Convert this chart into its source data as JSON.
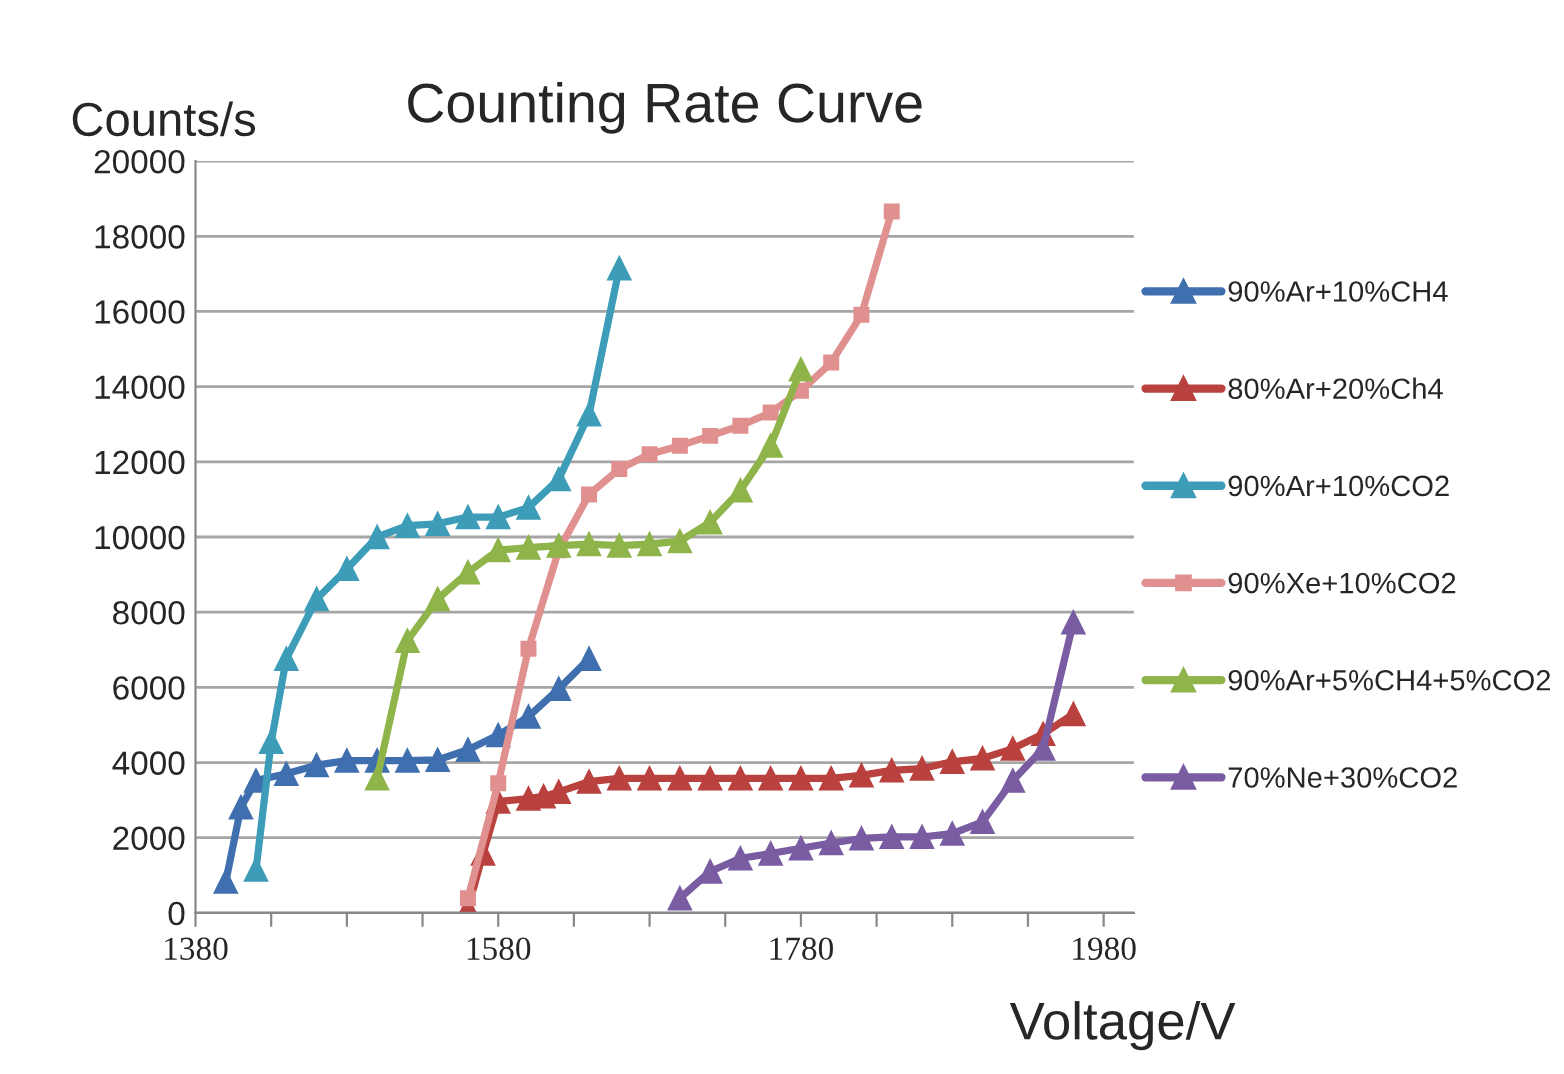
{
  "chart_data": {
    "type": "line",
    "title": "Counting Rate Curve",
    "xlabel": "Voltage/V",
    "ylabel": "Counts/s",
    "xlim": [
      1380,
      2000
    ],
    "ylim": [
      0,
      20000
    ],
    "xticks": [
      1380,
      {
        "value": 1430,
        "label": null
      },
      {
        "value": 1480,
        "label": null
      },
      {
        "value": 1530,
        "label": null
      },
      1580,
      {
        "value": 1630,
        "label": null
      },
      {
        "value": 1680,
        "label": null
      },
      {
        "value": 1730,
        "label": null
      },
      1780,
      {
        "value": 1830,
        "label": null
      },
      {
        "value": 1880,
        "label": null
      },
      {
        "value": 1930,
        "label": null
      },
      1980
    ],
    "yticks": [
      0,
      2000,
      4000,
      6000,
      8000,
      10000,
      12000,
      14000,
      16000,
      18000,
      20000
    ],
    "grid": "y",
    "legend": "right",
    "marker": "triangle",
    "series": [
      {
        "name": "90%Ar+10%CH4",
        "color": "#3f6fae",
        "x": [
          1400,
          1410,
          1420,
          1440,
          1460,
          1480,
          1500,
          1520,
          1540,
          1560,
          1580,
          1600,
          1620,
          1640
        ],
        "values": [
          830,
          2810,
          3520,
          3700,
          3930,
          4050,
          4050,
          4050,
          4070,
          4340,
          4730,
          5220,
          5960,
          6760
        ]
      },
      {
        "name": "80%Ar+20%Ch4",
        "color": "#b9413e",
        "x": [
          1560,
          1570,
          1580,
          1600,
          1610,
          1620,
          1640,
          1660,
          1680,
          1700,
          1720,
          1740,
          1760,
          1780,
          1800,
          1820,
          1840,
          1860,
          1880,
          1900,
          1920,
          1940,
          1960
        ],
        "values": [
          120,
          1580,
          2960,
          3040,
          3100,
          3220,
          3490,
          3580,
          3580,
          3580,
          3580,
          3580,
          3580,
          3580,
          3580,
          3660,
          3790,
          3840,
          4020,
          4110,
          4370,
          4760,
          5290
        ]
      },
      {
        "name": "90%Ar+10%CO2",
        "color": "#3d9db8",
        "x": [
          1420,
          1430,
          1440,
          1460,
          1480,
          1500,
          1520,
          1540,
          1560,
          1580,
          1600,
          1620,
          1640,
          1660
        ],
        "values": [
          1150,
          4550,
          6760,
          8350,
          9150,
          10000,
          10300,
          10350,
          10530,
          10530,
          10780,
          11540,
          13260,
          17150
        ]
      },
      {
        "name": "90%Xe+10%CO2",
        "color": "#e0908e",
        "marker": "square",
        "x": [
          1560,
          1580,
          1600,
          1620,
          1640,
          1660,
          1680,
          1700,
          1720,
          1740,
          1760,
          1780,
          1800,
          1820,
          1840
        ],
        "values": [
          390,
          3450,
          7030,
          9650,
          11130,
          11810,
          12200,
          12430,
          12690,
          12960,
          13310,
          13890,
          14640,
          15910,
          18660
        ]
      },
      {
        "name": "90%Ar+5%CH4+5%CO2",
        "color": "#8fb44a",
        "x": [
          1500,
          1520,
          1540,
          1560,
          1580,
          1600,
          1620,
          1640,
          1660,
          1680,
          1700,
          1720,
          1740,
          1760,
          1780
        ],
        "values": [
          3580,
          7240,
          8350,
          9060,
          9650,
          9720,
          9770,
          9810,
          9770,
          9810,
          9890,
          10390,
          11240,
          12430,
          14460
        ]
      },
      {
        "name": "70%Ne+30%CO2",
        "color": "#7a5ca2",
        "x": [
          1700,
          1720,
          1740,
          1760,
          1780,
          1800,
          1820,
          1840,
          1860,
          1880,
          1900,
          1920,
          1940,
          1960
        ],
        "values": [
          390,
          1100,
          1450,
          1580,
          1720,
          1860,
          1980,
          2020,
          2020,
          2110,
          2420,
          3520,
          4370,
          7730
        ]
      }
    ]
  }
}
